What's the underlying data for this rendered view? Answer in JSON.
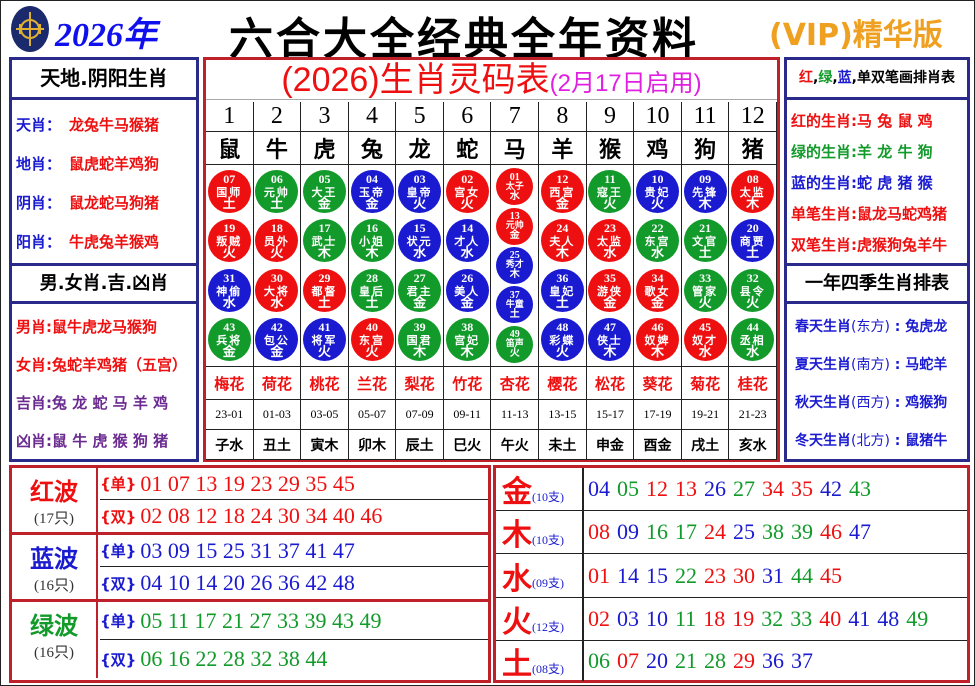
{
  "header": {
    "year": "2026年",
    "title": "六合大全经典全年资料",
    "edition": "(VIP)精华版"
  },
  "left": {
    "title1": "天地.阴阳生肖",
    "rows1": [
      {
        "k": "天肖",
        "v": "龙兔牛马猴猪"
      },
      {
        "k": "地肖",
        "v": "鼠虎蛇羊鸡狗"
      },
      {
        "k": "阴肖",
        "v": "鼠龙蛇马狗猪"
      },
      {
        "k": "阳肖",
        "v": "牛虎兔羊猴鸡"
      }
    ],
    "title2": "男.女肖.吉.凶肖",
    "rows2": [
      {
        "k": "男肖",
        "v": "鼠牛虎龙马猴狗"
      },
      {
        "k": "女肖",
        "v": "兔蛇羊鸡猪（五宫）"
      },
      {
        "k": "吉肖",
        "v": "兔 龙 蛇 马 羊 鸡"
      },
      {
        "k": "凶肖",
        "v": "鼠 牛 虎 猴 狗 猪"
      }
    ]
  },
  "right": {
    "title1_parts": [
      "红",
      "绿",
      "蓝",
      "单双笔画排肖表"
    ],
    "rows1": [
      {
        "k": "红的生肖",
        "v": "马 兔 鼠 鸡",
        "color": "#ee1010"
      },
      {
        "k": "绿的生肖",
        "v": "羊 龙 牛 狗",
        "color": "#129a2a"
      },
      {
        "k": "蓝的生肖",
        "v": "蛇 虎 猪 猴",
        "color": "#1a1ad0"
      },
      {
        "k": "单笔生肖",
        "v": "鼠龙马蛇鸡猪",
        "color": "#ee1010"
      },
      {
        "k": "双笔生肖",
        "v": "虎猴狗兔羊牛",
        "color": "#ee1010"
      }
    ],
    "title2": "一年四季生肖排表",
    "rows2": [
      {
        "k": "春天生肖",
        "d": "(东方)",
        "v": "兔虎龙"
      },
      {
        "k": "夏天生肖",
        "d": "(南方)",
        "v": "马蛇羊"
      },
      {
        "k": "秋天生肖",
        "d": "(西方)",
        "v": "鸡猴狗"
      },
      {
        "k": "冬天生肖",
        "d": "(北方)",
        "v": "鼠猪牛"
      }
    ]
  },
  "center": {
    "title": "(2026)生肖灵码表",
    "subtitle": "(2月17日启用)",
    "columns": [
      {
        "n": "1",
        "z": "鼠",
        "f": "梅花",
        "t": "23-01",
        "b": "子水",
        "balls": [
          [
            "07",
            "国师",
            "土",
            "red"
          ],
          [
            "19",
            "叛贼",
            "火",
            "red"
          ],
          [
            "31",
            "神偷",
            "水",
            "blue"
          ],
          [
            "43",
            "兵将",
            "金",
            "green"
          ]
        ]
      },
      {
        "n": "2",
        "z": "牛",
        "f": "荷花",
        "t": "01-03",
        "b": "丑土",
        "balls": [
          [
            "06",
            "元帅",
            "土",
            "green"
          ],
          [
            "18",
            "员外",
            "火",
            "red"
          ],
          [
            "30",
            "大将",
            "水",
            "red"
          ],
          [
            "42",
            "包公",
            "金",
            "blue"
          ]
        ]
      },
      {
        "n": "3",
        "z": "虎",
        "f": "桃花",
        "t": "03-05",
        "b": "寅木",
        "balls": [
          [
            "05",
            "大王",
            "金",
            "green"
          ],
          [
            "17",
            "武士",
            "木",
            "green"
          ],
          [
            "29",
            "都督",
            "土",
            "red"
          ],
          [
            "41",
            "将军",
            "火",
            "blue"
          ]
        ]
      },
      {
        "n": "4",
        "z": "兔",
        "f": "兰花",
        "t": "05-07",
        "b": "卯木",
        "balls": [
          [
            "04",
            "玉帝",
            "金",
            "blue"
          ],
          [
            "16",
            "小姐",
            "木",
            "green"
          ],
          [
            "28",
            "皇后",
            "土",
            "green"
          ],
          [
            "40",
            "东宫",
            "火",
            "red"
          ]
        ]
      },
      {
        "n": "5",
        "z": "龙",
        "f": "梨花",
        "t": "07-09",
        "b": "辰土",
        "balls": [
          [
            "03",
            "皇帝",
            "火",
            "blue"
          ],
          [
            "15",
            "状元",
            "水",
            "blue"
          ],
          [
            "27",
            "君主",
            "金",
            "green"
          ],
          [
            "39",
            "国君",
            "木",
            "green"
          ]
        ]
      },
      {
        "n": "6",
        "z": "蛇",
        "f": "竹花",
        "t": "09-11",
        "b": "巳火",
        "balls": [
          [
            "02",
            "宫女",
            "火",
            "red"
          ],
          [
            "14",
            "才人",
            "水",
            "blue"
          ],
          [
            "26",
            "美人",
            "金",
            "blue"
          ],
          [
            "38",
            "宫妃",
            "木",
            "green"
          ]
        ]
      },
      {
        "n": "7",
        "z": "马",
        "f": "杏花",
        "t": "11-13",
        "b": "午火",
        "balls": [
          [
            "01",
            "太子",
            "水",
            "red"
          ],
          [
            "13",
            "元帅",
            "金",
            "red"
          ],
          [
            "25",
            "秀才",
            "木",
            "blue"
          ],
          [
            "37",
            "牛童",
            "土",
            "blue"
          ],
          [
            "49",
            "笛声",
            "火",
            "green"
          ]
        ]
      },
      {
        "n": "8",
        "z": "羊",
        "f": "樱花",
        "t": "13-15",
        "b": "未土",
        "balls": [
          [
            "12",
            "西宫",
            "金",
            "red"
          ],
          [
            "24",
            "夫人",
            "木",
            "red"
          ],
          [
            "36",
            "皇妃",
            "土",
            "blue"
          ],
          [
            "48",
            "彩蝶",
            "火",
            "blue"
          ]
        ]
      },
      {
        "n": "9",
        "z": "猴",
        "f": "松花",
        "t": "15-17",
        "b": "申金",
        "balls": [
          [
            "11",
            "寇王",
            "火",
            "green"
          ],
          [
            "23",
            "太监",
            "水",
            "red"
          ],
          [
            "35",
            "游侠",
            "金",
            "red"
          ],
          [
            "47",
            "侠士",
            "木",
            "blue"
          ]
        ]
      },
      {
        "n": "10",
        "z": "鸡",
        "f": "葵花",
        "t": "17-19",
        "b": "酉金",
        "balls": [
          [
            "10",
            "贵妃",
            "火",
            "blue"
          ],
          [
            "22",
            "东宫",
            "水",
            "green"
          ],
          [
            "34",
            "歌女",
            "金",
            "red"
          ],
          [
            "46",
            "奴婢",
            "木",
            "red"
          ]
        ]
      },
      {
        "n": "11",
        "z": "狗",
        "f": "菊花",
        "t": "19-21",
        "b": "戌土",
        "balls": [
          [
            "09",
            "先锋",
            "木",
            "blue"
          ],
          [
            "21",
            "文官",
            "土",
            "green"
          ],
          [
            "33",
            "管家",
            "火",
            "green"
          ],
          [
            "45",
            "奴才",
            "水",
            "red"
          ]
        ]
      },
      {
        "n": "12",
        "z": "猪",
        "f": "桂花",
        "t": "21-23",
        "b": "亥水",
        "balls": [
          [
            "08",
            "太监",
            "木",
            "red"
          ],
          [
            "20",
            "商贾",
            "土",
            "blue"
          ],
          [
            "32",
            "县令",
            "火",
            "green"
          ],
          [
            "44",
            "丞相",
            "水",
            "green"
          ]
        ]
      }
    ]
  },
  "colors": {
    "red": "#ee1010",
    "blue": "#1a1ad0",
    "green": "#129a2a"
  },
  "waves": [
    {
      "name": "红波",
      "count": "(17只)",
      "color": "red",
      "odd_tag": "{单}",
      "odd": "01 07 13 19 23 29 35 45",
      "even_tag": "{双}",
      "even": "02 08 12 18 24 30 34 40 46"
    },
    {
      "name": "蓝波",
      "count": "(16只)",
      "color": "blue",
      "odd_tag": "{单}",
      "odd": "03 09 15 25 31 37 41 47",
      "even_tag": "{双}",
      "even": "04 10 14 20 26 36 42 48"
    },
    {
      "name": "绿波",
      "count": "(16只)",
      "color": "green",
      "odd_tag": "{单}",
      "odd": "05 11 17 21 27 33 39 43 49",
      "even_tag": "{双}",
      "even": "06 16 22 28 32 38 44"
    }
  ],
  "elements": [
    {
      "name": "金",
      "count": "(10支)",
      "nums": [
        "04",
        "05",
        "12",
        "13",
        "26",
        "27",
        "34",
        "35",
        "42",
        "43"
      ]
    },
    {
      "name": "木",
      "count": "(10支)",
      "nums": [
        "08",
        "09",
        "16",
        "17",
        "24",
        "25",
        "38",
        "39",
        "46",
        "47"
      ]
    },
    {
      "name": "水",
      "count": "(09支)",
      "nums": [
        "01",
        "14",
        "15",
        "22",
        "23",
        "30",
        "31",
        "44",
        "45"
      ]
    },
    {
      "name": "火",
      "count": "(12支)",
      "nums": [
        "02",
        "03",
        "10",
        "11",
        "18",
        "19",
        "32",
        "33",
        "40",
        "41",
        "48",
        "49"
      ]
    },
    {
      "name": "土",
      "count": "(08支)",
      "nums": [
        "06",
        "07",
        "20",
        "21",
        "28",
        "29",
        "36",
        "37"
      ]
    }
  ]
}
